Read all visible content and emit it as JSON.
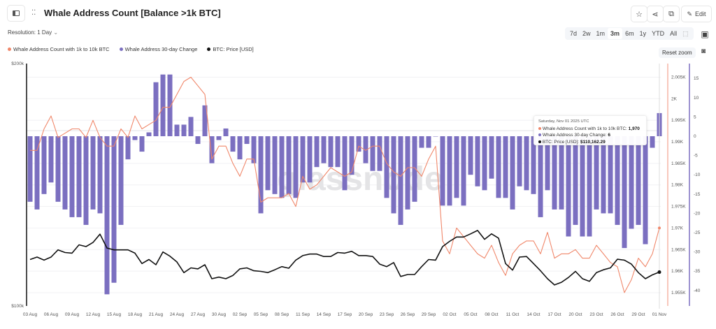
{
  "header": {
    "title": "Whale Address Count [Balance >1k BTC]",
    "edit_label": "Edit",
    "icons": [
      "sidebar-toggle-icon",
      "drag-handle-icon",
      "star-icon",
      "share-icon",
      "copy-icon",
      "pencil-icon"
    ]
  },
  "controls": {
    "resolution": "Resolution: 1 Day",
    "ranges": [
      "7d",
      "2w",
      "1m",
      "3m",
      "6m",
      "1y",
      "YTD",
      "All"
    ],
    "selected_range": "3m",
    "reset_zoom": "Reset zoom"
  },
  "watermark": "glassnode",
  "colors": {
    "count": "#f0876a",
    "change": "#7b6fc0",
    "price": "#111111"
  },
  "tooltip": {
    "date": "Saturday, Nov 01 2025 UTC",
    "count_label": "Whale Address Count with 1k to 10k BTC:",
    "count_value": "1,970",
    "change_label": "Whale Address 30-day Change:",
    "change_value": "6",
    "price_label": "BTC: Price [USD]:",
    "price_value": "$110,162.29"
  },
  "chart_data": {
    "type": "bar+line",
    "legend_placement": "top-left",
    "grid": true,
    "x_start": "2025-08-03",
    "x_end": "2025-11-01",
    "x_ticks": [
      "03 Aug",
      "06 Aug",
      "09 Aug",
      "12 Aug",
      "15 Aug",
      "18 Aug",
      "21 Aug",
      "24 Aug",
      "27 Aug",
      "30 Aug",
      "02 Sep",
      "05 Sep",
      "08 Sep",
      "11 Sep",
      "14 Sep",
      "17 Sep",
      "20 Sep",
      "23 Sep",
      "26 Sep",
      "29 Sep",
      "02 Oct",
      "05 Oct",
      "08 Oct",
      "11 Oct",
      "14 Oct",
      "17 Oct",
      "20 Oct",
      "23 Oct",
      "26 Oct",
      "29 Oct",
      "01 Nov"
    ],
    "price_axis": {
      "scale": "log",
      "range": [
        100000,
        200000
      ],
      "tick_labels": [
        "$200k",
        "$100k"
      ]
    },
    "count_axis": {
      "range": [
        1954,
        2007
      ],
      "tick_labels": [
        "2.005K",
        "2K",
        "1.995K",
        "1.99K",
        "1.985K",
        "1.98K",
        "1.975K",
        "1.97K",
        "1.965K",
        "1.96K",
        "1.955K"
      ],
      "ticks": [
        2005,
        2000,
        1995,
        1990,
        1985,
        1980,
        1975,
        1970,
        1965,
        1960,
        1955
      ]
    },
    "change_axis": {
      "range": [
        -43,
        18
      ],
      "tick_labels": [
        "15",
        "10",
        "5",
        "0",
        "-5",
        "-10",
        "-15",
        "-20",
        "-25",
        "-30",
        "-35",
        "-40"
      ],
      "ticks": [
        15,
        10,
        5,
        0,
        -5,
        -10,
        -15,
        -20,
        -25,
        -30,
        -35,
        -40
      ]
    },
    "series": [
      {
        "name": "Whale Address Count with 1k to 10k BTC",
        "type": "line",
        "axis": "count",
        "values": [
          1988,
          1988,
          1993,
          1996,
          1991,
          1992,
          1993,
          1993,
          1991,
          1995,
          1991,
          1989,
          1989,
          1993,
          1991,
          1996,
          1993,
          1994,
          1995,
          1998,
          1998,
          2001,
          2004,
          2005,
          2003,
          2001,
          1986,
          1989,
          1989,
          1985,
          1982,
          1986,
          1986,
          1976,
          1977,
          1977,
          1977,
          1978,
          1975,
          1982,
          1979,
          1980,
          1982,
          1984,
          1983,
          1982,
          1983,
          1989,
          1988,
          1989,
          1989,
          1985,
          1983,
          1982,
          1984,
          1984,
          1982,
          1986,
          1989,
          1967,
          1964,
          1970,
          1968,
          1966,
          1964,
          1963,
          1966,
          1962,
          1959,
          1964,
          1966,
          1967,
          1967,
          1964,
          1969,
          1963,
          1964,
          1964,
          1965,
          1963,
          1963,
          1966,
          1964,
          1962,
          1961,
          1955,
          1958,
          1963,
          1961,
          1964,
          1970
        ]
      },
      {
        "name": "Whale Address 30-day Change",
        "type": "bar",
        "axis": "change",
        "values": [
          -17,
          -19,
          -15,
          -12,
          -17,
          -19,
          -21,
          -21,
          -23,
          -19,
          -20,
          -41,
          -38,
          -23,
          -6,
          -1,
          -4,
          1,
          14,
          16,
          16,
          3,
          3,
          5,
          -2,
          8,
          -7,
          -1,
          2,
          -4,
          -6,
          -2,
          -7,
          -20,
          -14,
          -15,
          -16,
          -15,
          -16,
          -12,
          -12,
          -8,
          -7,
          -8,
          -8,
          -14,
          -10,
          -4,
          -7,
          -9,
          -9,
          -16,
          -20,
          -23,
          -19,
          -17,
          -3,
          -3,
          0,
          -18,
          -18,
          -16,
          -18,
          -10,
          -13,
          -14,
          -11,
          -16,
          -16,
          -19,
          -13,
          -14,
          -15,
          -21,
          -14,
          -19,
          -19,
          -26,
          -23,
          -26,
          -26,
          -19,
          -20,
          -20,
          -23,
          -29,
          -24,
          -23,
          -28,
          -3,
          6
        ]
      },
      {
        "name": "BTC: Price [USD]",
        "type": "line",
        "axis": "price",
        "values": [
          114200,
          115000,
          114000,
          115000,
          117400,
          116500,
          116300,
          119100,
          118500,
          119900,
          122800,
          118000,
          117400,
          117400,
          117400,
          116300,
          112900,
          114200,
          112500,
          116700,
          115300,
          113400,
          110000,
          111500,
          111200,
          112500,
          108100,
          108600,
          108100,
          109100,
          111200,
          111500,
          110600,
          110400,
          110000,
          110900,
          111900,
          111400,
          114000,
          115500,
          116000,
          116000,
          115200,
          115200,
          116500,
          116300,
          116900,
          115500,
          115500,
          115200,
          112700,
          111900,
          113200,
          108800,
          109400,
          109400,
          111900,
          114200,
          114000,
          118500,
          120300,
          121800,
          121800,
          122900,
          124100,
          121000,
          122900,
          121400,
          112900,
          110800,
          115000,
          115200,
          112900,
          110600,
          108100,
          106200,
          107000,
          108500,
          110400,
          108100,
          107300,
          110000,
          110900,
          111500,
          114300,
          114000,
          112700,
          110000,
          108100,
          109300,
          110162.29
        ]
      }
    ]
  }
}
